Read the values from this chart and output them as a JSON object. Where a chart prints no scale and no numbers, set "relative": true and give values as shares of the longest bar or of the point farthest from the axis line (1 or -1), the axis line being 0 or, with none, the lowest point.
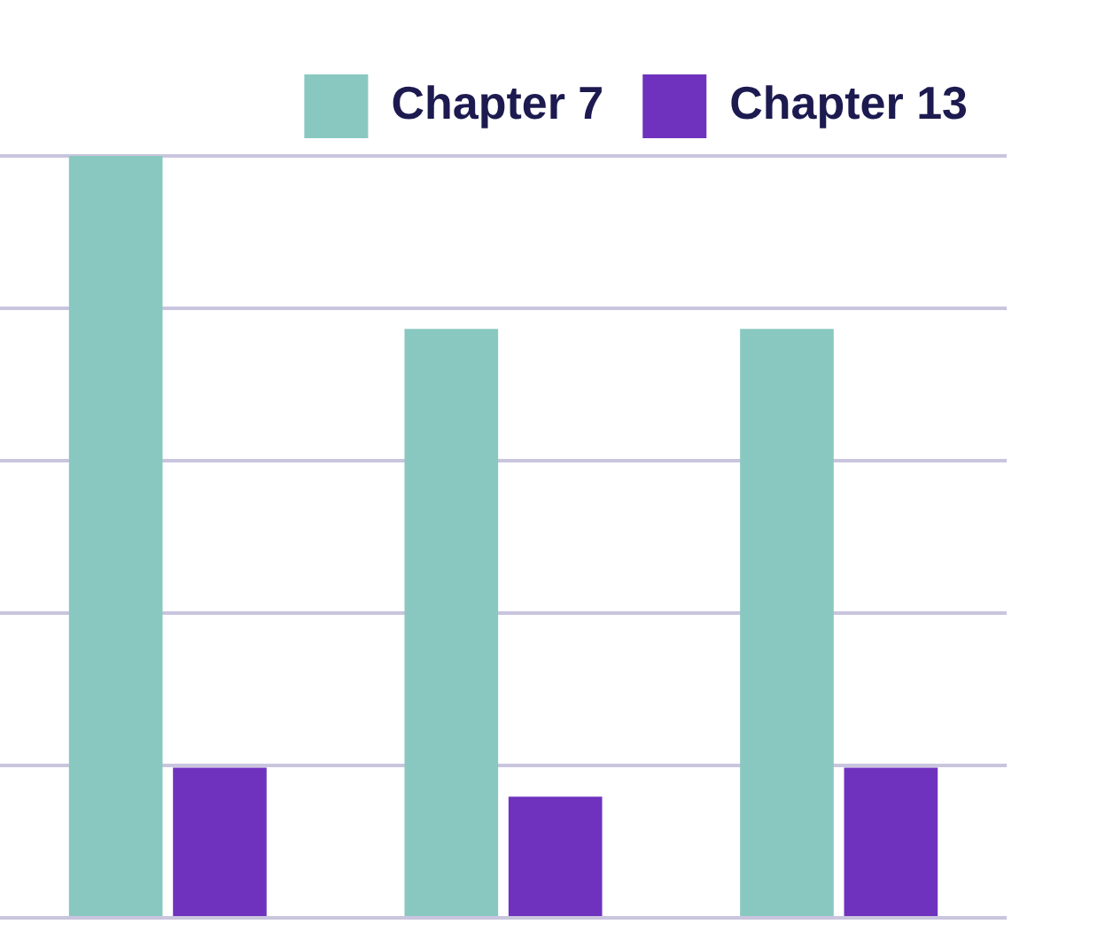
{
  "chart_data": {
    "type": "bar",
    "relative": true,
    "categories": [
      null,
      null,
      null
    ],
    "series": [
      {
        "name": "Chapter 7",
        "color": "#88c8c0",
        "values": [
          1,
          0.773,
          0.773
        ]
      },
      {
        "name": "Chapter 13",
        "color": "#6f32be",
        "values": [
          0.197,
          0.159,
          0.197
        ]
      }
    ],
    "grid": "y",
    "legend": "top right"
  }
}
